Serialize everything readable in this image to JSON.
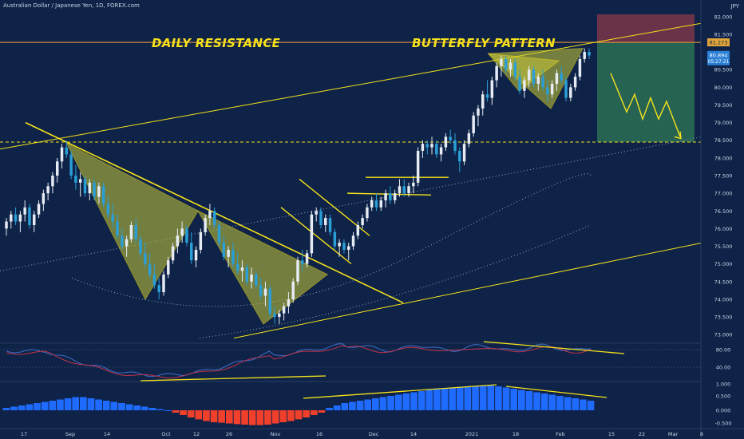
{
  "header": {
    "symbol_title": "Australian Dollar / Japanese Yen, 1D, FOREX.com",
    "currency": "JPY"
  },
  "annotations": {
    "left": "DAILY RESISTANCE",
    "right": "BUTTERFLY PATTERN"
  },
  "colors": {
    "background": "#0e2347",
    "bull_candle": "#e7ecf4",
    "bear_candle": "#2a9fd6",
    "trendline": "#f7e21b",
    "resistance_line": "#d08c3a",
    "stop_zone": "#8b3a4a",
    "target_zone": "#2f7a55",
    "macd_positive": "#1f6bff",
    "macd_negative": "#f0402c",
    "stoch_k": "#3e6ec9",
    "stoch_d": "#c0334a"
  },
  "chart_data": {
    "type": "candlestick",
    "title": "Australian Dollar / Japanese Yen, 1D, FOREX.com",
    "y_axis": {
      "ticks": [
        "82.000",
        "81.500",
        "80.500",
        "80.000",
        "79.500",
        "79.000",
        "78.500",
        "78.000",
        "77.500",
        "77.000",
        "76.500",
        "76.000",
        "75.500",
        "75.000",
        "74.500",
        "74.000",
        "73.500",
        "73.000"
      ],
      "ylim": [
        72.8,
        82.2
      ],
      "price_labels": {
        "resistance": "81.273",
        "last": "80.894",
        "countdown": "05:27:21"
      }
    },
    "x_axis": {
      "ticks": [
        "17",
        "Sep",
        "14",
        "Oct",
        "12",
        "26",
        "Nov",
        "16",
        "Dec",
        "14",
        "2021",
        "18",
        "Feb",
        "15",
        "22",
        "Mar",
        "8"
      ]
    },
    "candles_ohlc": [
      [
        76.0,
        76.3,
        75.8,
        76.2
      ],
      [
        76.2,
        76.5,
        76.0,
        76.4
      ],
      [
        76.4,
        76.6,
        76.1,
        76.2
      ],
      [
        76.2,
        76.5,
        75.9,
        76.4
      ],
      [
        76.4,
        76.8,
        76.2,
        76.6
      ],
      [
        76.6,
        76.7,
        76.0,
        76.1
      ],
      [
        76.1,
        76.5,
        75.9,
        76.4
      ],
      [
        76.4,
        76.8,
        76.3,
        76.7
      ],
      [
        76.7,
        77.1,
        76.5,
        77.0
      ],
      [
        77.0,
        77.3,
        76.8,
        77.2
      ],
      [
        77.2,
        77.6,
        77.0,
        77.5
      ],
      [
        77.5,
        78.0,
        77.3,
        77.9
      ],
      [
        77.9,
        78.4,
        77.7,
        78.3
      ],
      [
        78.3,
        78.5,
        78.0,
        78.1
      ],
      [
        78.1,
        78.2,
        77.4,
        77.5
      ],
      [
        77.5,
        77.8,
        77.1,
        77.3
      ],
      [
        77.3,
        77.6,
        76.9,
        77.4
      ],
      [
        77.4,
        77.5,
        76.9,
        77.0
      ],
      [
        77.0,
        77.4,
        76.8,
        77.3
      ],
      [
        77.3,
        77.4,
        76.8,
        76.9
      ],
      [
        76.9,
        77.3,
        76.7,
        77.2
      ],
      [
        77.2,
        77.3,
        76.6,
        76.7
      ],
      [
        76.7,
        76.9,
        76.3,
        76.4
      ],
      [
        76.4,
        76.7,
        76.0,
        76.2
      ],
      [
        76.2,
        76.4,
        75.7,
        75.8
      ],
      [
        75.8,
        76.0,
        75.4,
        75.5
      ],
      [
        75.5,
        75.8,
        75.2,
        75.7
      ],
      [
        75.7,
        76.2,
        75.6,
        76.1
      ],
      [
        76.1,
        76.3,
        75.6,
        75.7
      ],
      [
        75.7,
        75.8,
        75.2,
        75.3
      ],
      [
        75.3,
        75.6,
        74.9,
        75.0
      ],
      [
        75.0,
        75.3,
        74.6,
        74.7
      ],
      [
        74.7,
        75.0,
        74.3,
        74.4
      ],
      [
        74.4,
        74.6,
        74.0,
        74.2
      ],
      [
        74.2,
        74.8,
        74.1,
        74.7
      ],
      [
        74.7,
        75.2,
        74.6,
        75.1
      ],
      [
        75.1,
        75.6,
        75.0,
        75.5
      ],
      [
        75.5,
        76.0,
        75.3,
        75.8
      ],
      [
        75.8,
        76.2,
        75.6,
        76.0
      ],
      [
        76.0,
        76.1,
        75.5,
        75.6
      ],
      [
        75.6,
        75.9,
        75.0,
        75.1
      ],
      [
        75.1,
        75.5,
        74.9,
        75.4
      ],
      [
        75.4,
        76.0,
        75.3,
        75.9
      ],
      [
        75.9,
        76.4,
        75.8,
        76.3
      ],
      [
        76.3,
        76.7,
        76.1,
        76.5
      ],
      [
        76.5,
        76.6,
        76.0,
        76.1
      ],
      [
        76.1,
        76.2,
        75.5,
        75.6
      ],
      [
        75.6,
        75.8,
        75.1,
        75.2
      ],
      [
        75.2,
        75.5,
        74.9,
        75.4
      ],
      [
        75.4,
        75.6,
        74.9,
        75.0
      ],
      [
        75.0,
        75.3,
        74.7,
        74.8
      ],
      [
        74.8,
        75.1,
        74.5,
        74.9
      ],
      [
        74.9,
        75.0,
        74.4,
        74.5
      ],
      [
        74.5,
        74.9,
        74.3,
        74.7
      ],
      [
        74.7,
        74.8,
        74.3,
        74.4
      ],
      [
        74.4,
        74.6,
        74.0,
        74.1
      ],
      [
        74.1,
        74.5,
        73.8,
        74.3
      ],
      [
        74.3,
        74.4,
        73.5,
        73.6
      ],
      [
        73.6,
        73.8,
        73.3,
        73.5
      ],
      [
        73.5,
        73.7,
        73.3,
        73.6
      ],
      [
        73.6,
        73.9,
        73.4,
        73.8
      ],
      [
        73.8,
        74.2,
        73.6,
        74.0
      ],
      [
        74.0,
        74.6,
        73.9,
        74.5
      ],
      [
        74.5,
        75.2,
        74.4,
        75.1
      ],
      [
        75.1,
        75.4,
        74.8,
        75.0
      ],
      [
        75.0,
        75.4,
        74.9,
        75.3
      ],
      [
        75.3,
        76.5,
        75.2,
        76.4
      ],
      [
        76.4,
        76.6,
        76.2,
        76.5
      ],
      [
        76.5,
        76.6,
        76.0,
        76.1
      ],
      [
        76.1,
        76.4,
        75.9,
        76.3
      ],
      [
        76.3,
        76.4,
        75.8,
        75.9
      ],
      [
        75.9,
        76.0,
        75.4,
        75.5
      ],
      [
        75.5,
        75.7,
        75.2,
        75.6
      ],
      [
        75.6,
        75.7,
        75.3,
        75.4
      ],
      [
        75.4,
        75.6,
        75.1,
        75.5
      ],
      [
        75.5,
        75.9,
        75.4,
        75.8
      ],
      [
        75.8,
        76.2,
        75.7,
        76.1
      ],
      [
        76.1,
        76.4,
        76.0,
        76.3
      ],
      [
        76.3,
        76.7,
        76.2,
        76.6
      ],
      [
        76.6,
        76.9,
        76.5,
        76.8
      ],
      [
        76.8,
        77.0,
        76.5,
        76.6
      ],
      [
        76.6,
        76.9,
        76.5,
        76.8
      ],
      [
        76.8,
        77.1,
        76.6,
        77.0
      ],
      [
        77.0,
        77.2,
        76.7,
        76.8
      ],
      [
        76.8,
        77.1,
        76.7,
        77.0
      ],
      [
        77.0,
        77.4,
        76.9,
        77.2
      ],
      [
        77.2,
        77.4,
        76.9,
        77.0
      ],
      [
        77.0,
        77.3,
        76.9,
        77.2
      ],
      [
        77.2,
        77.5,
        77.0,
        77.3
      ],
      [
        77.3,
        78.3,
        77.2,
        78.2
      ],
      [
        78.2,
        78.5,
        78.0,
        78.4
      ],
      [
        78.4,
        78.5,
        78.1,
        78.3
      ],
      [
        78.3,
        78.6,
        78.1,
        78.4
      ],
      [
        78.4,
        78.5,
        78.0,
        78.1
      ],
      [
        78.1,
        78.4,
        77.9,
        78.3
      ],
      [
        78.3,
        78.7,
        78.2,
        78.6
      ],
      [
        78.6,
        78.8,
        78.4,
        78.5
      ],
      [
        78.5,
        78.7,
        78.1,
        78.2
      ],
      [
        78.2,
        78.3,
        77.6,
        77.9
      ],
      [
        77.9,
        78.5,
        77.8,
        78.4
      ],
      [
        78.4,
        78.8,
        78.3,
        78.7
      ],
      [
        78.7,
        79.3,
        78.6,
        79.2
      ],
      [
        79.2,
        79.5,
        78.9,
        79.4
      ],
      [
        79.4,
        79.9,
        79.2,
        79.8
      ],
      [
        79.8,
        80.2,
        79.6,
        79.7
      ],
      [
        79.7,
        80.3,
        79.5,
        80.2
      ],
      [
        80.2,
        80.7,
        80.0,
        80.6
      ],
      [
        80.6,
        80.9,
        80.3,
        80.8
      ],
      [
        80.8,
        80.9,
        80.4,
        80.5
      ],
      [
        80.5,
        80.8,
        80.3,
        80.7
      ],
      [
        80.7,
        80.8,
        80.2,
        80.3
      ],
      [
        80.3,
        80.5,
        79.8,
        79.9
      ],
      [
        79.9,
        80.3,
        79.7,
        80.2
      ],
      [
        80.2,
        80.6,
        80.0,
        80.5
      ],
      [
        80.5,
        80.6,
        80.0,
        80.1
      ],
      [
        80.1,
        80.4,
        79.9,
        80.3
      ],
      [
        80.3,
        80.5,
        79.9,
        80.0
      ],
      [
        80.0,
        80.2,
        79.6,
        79.8
      ],
      [
        79.8,
        80.2,
        79.7,
        80.1
      ],
      [
        80.1,
        80.5,
        79.9,
        80.4
      ],
      [
        80.4,
        80.6,
        80.1,
        80.2
      ],
      [
        80.2,
        80.3,
        79.6,
        79.7
      ],
      [
        79.7,
        80.1,
        79.6,
        80.0
      ],
      [
        80.0,
        80.4,
        79.9,
        80.3
      ],
      [
        80.3,
        80.9,
        80.2,
        80.8
      ],
      [
        80.8,
        81.1,
        80.7,
        81.0
      ],
      [
        81.0,
        81.1,
        80.8,
        80.9
      ]
    ],
    "macd_histogram": [
      0.1,
      0.15,
      0.2,
      0.25,
      0.3,
      0.35,
      0.4,
      0.45,
      0.5,
      0.55,
      0.55,
      0.5,
      0.45,
      0.4,
      0.35,
      0.3,
      0.25,
      0.2,
      0.15,
      0.1,
      0.05,
      0.0,
      -0.1,
      -0.2,
      -0.3,
      -0.38,
      -0.45,
      -0.5,
      -0.52,
      -0.55,
      -0.58,
      -0.6,
      -0.62,
      -0.62,
      -0.6,
      -0.55,
      -0.5,
      -0.45,
      -0.38,
      -0.3,
      -0.2,
      -0.1,
      0.1,
      0.2,
      0.3,
      0.35,
      0.4,
      0.45,
      0.5,
      0.55,
      0.6,
      0.65,
      0.7,
      0.75,
      0.8,
      0.85,
      0.9,
      0.92,
      0.95,
      0.97,
      1.0,
      1.0,
      1.02,
      1.05,
      1.0,
      0.95,
      0.9,
      0.85,
      0.8,
      0.75,
      0.7,
      0.65,
      0.6,
      0.55,
      0.5,
      0.45,
      0.4
    ],
    "stochastic_levels": [
      "80.00",
      "40.00"
    ],
    "macd_ticks": [
      "1.000",
      "0.500",
      "0.000",
      "-0.500"
    ]
  }
}
